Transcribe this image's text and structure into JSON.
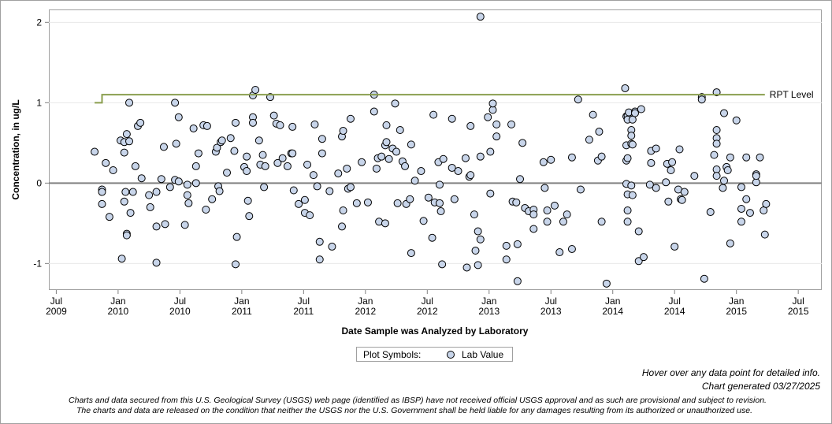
{
  "chart_data": {
    "type": "scatter",
    "y_label": "Concentration, in ug/L",
    "x_label": "Date Sample was Analyzed by Laboratory",
    "xlim": [
      2009.44,
      2015.69
    ],
    "ylim": [
      -1.33,
      2.16
    ],
    "xticks": [
      {
        "value": 2009.5,
        "label": "Jul 2009"
      },
      {
        "value": 2010.0,
        "label": "Jan 2010"
      },
      {
        "value": 2010.5,
        "label": "Jul 2010"
      },
      {
        "value": 2011.0,
        "label": "Jan 2011"
      },
      {
        "value": 2011.5,
        "label": "Jul 2011"
      },
      {
        "value": 2012.0,
        "label": "Jan 2012"
      },
      {
        "value": 2012.5,
        "label": "Jul 2012"
      },
      {
        "value": 2013.0,
        "label": "Jan 2013"
      },
      {
        "value": 2013.5,
        "label": "Jul 2013"
      },
      {
        "value": 2014.0,
        "label": "Jan 2014"
      },
      {
        "value": 2014.5,
        "label": "Jul 2014"
      },
      {
        "value": 2015.0,
        "label": "Jan 2015"
      },
      {
        "value": 2015.5,
        "label": "Jul 2015"
      }
    ],
    "yticks": [
      -1,
      0,
      1,
      2
    ],
    "grid": true,
    "reference_line": {
      "value": 0,
      "color": "#808080"
    },
    "legend": {
      "title": "Plot Symbols:",
      "position": "bottom"
    },
    "series": [
      {
        "name": "Lab Value",
        "color": "#c8d5ea",
        "x": [
          2009.81,
          2009.87,
          2009.87,
          2009.87,
          2009.9,
          2009.93,
          2009.96,
          2010.02,
          2010.03,
          2010.05,
          2010.05,
          2010.05,
          2010.06,
          2010.07,
          2010.07,
          2010.07,
          2010.09,
          2010.09,
          2010.1,
          2010.12,
          2010.14,
          2010.16,
          2010.18,
          2010.19,
          2010.25,
          2010.26,
          2010.31,
          2010.31,
          2010.31,
          2010.35,
          2010.37,
          2010.38,
          2010.42,
          2010.46,
          2010.46,
          2010.47,
          2010.49,
          2010.49,
          2010.54,
          2010.56,
          2010.56,
          2010.57,
          2010.61,
          2010.63,
          2010.63,
          2010.65,
          2010.69,
          2010.71,
          2010.72,
          2010.76,
          2010.79,
          2010.8,
          2010.81,
          2010.82,
          2010.83,
          2010.84,
          2010.88,
          2010.91,
          2010.94,
          2010.95,
          2010.95,
          2010.96,
          2011.02,
          2011.04,
          2011.04,
          2011.05,
          2011.06,
          2011.09,
          2011.09,
          2011.09,
          2011.11,
          2011.14,
          2011.15,
          2011.17,
          2011.18,
          2011.19,
          2011.23,
          2011.26,
          2011.29,
          2011.28,
          2011.31,
          2011.33,
          2011.37,
          2011.4,
          2011.41,
          2011.41,
          2011.42,
          2011.46,
          2011.51,
          2011.51,
          2011.53,
          2011.55,
          2011.58,
          2011.59,
          2011.61,
          2011.63,
          2011.63,
          2011.65,
          2011.65,
          2011.71,
          2011.73,
          2011.78,
          2011.81,
          2011.81,
          2011.82,
          2011.82,
          2011.85,
          2011.86,
          2011.88,
          2011.88,
          2011.93,
          2011.97,
          2012.02,
          2012.07,
          2012.07,
          2012.09,
          2012.1,
          2012.11,
          2012.13,
          2012.16,
          2012.16,
          2012.17,
          2012.17,
          2012.19,
          2012.22,
          2012.24,
          2012.25,
          2012.26,
          2012.28,
          2012.3,
          2012.32,
          2012.33,
          2012.36,
          2012.37,
          2012.37,
          2012.4,
          2012.45,
          2012.47,
          2012.51,
          2012.54,
          2012.55,
          2012.56,
          2012.59,
          2012.6,
          2012.6,
          2012.61,
          2012.62,
          2012.63,
          2012.7,
          2012.7,
          2012.72,
          2012.75,
          2012.81,
          2012.82,
          2012.84,
          2012.85,
          2012.85,
          2012.88,
          2012.89,
          2012.91,
          2012.91,
          2012.93,
          2012.93,
          2012.93,
          2012.99,
          2013.01,
          2013.01,
          2013.03,
          2013.03,
          2013.06,
          2013.06,
          2013.14,
          2013.14,
          2013.18,
          2013.19,
          2013.22,
          2013.23,
          2013.23,
          2013.25,
          2013.27,
          2013.29,
          2013.32,
          2013.36,
          2013.36,
          2013.36,
          2013.44,
          2013.45,
          2013.47,
          2013.47,
          2013.5,
          2013.53,
          2013.57,
          2013.6,
          2013.63,
          2013.67,
          2013.67,
          2013.72,
          2013.74,
          2013.81,
          2013.84,
          2013.88,
          2013.89,
          2013.91,
          2013.91,
          2013.95,
          2014.1,
          2014.11,
          2014.11,
          2014.11,
          2014.11,
          2014.12,
          2014.12,
          2014.12,
          2014.12,
          2014.12,
          2014.12,
          2014.13,
          2014.15,
          2014.15,
          2014.15,
          2014.15,
          2014.16,
          2014.16,
          2014.16,
          2014.18,
          2014.18,
          2014.21,
          2014.21,
          2014.23,
          2014.25,
          2014.3,
          2014.31,
          2014.31,
          2014.35,
          2014.35,
          2014.43,
          2014.44,
          2014.45,
          2014.47,
          2014.48,
          2014.5,
          2014.53,
          2014.54,
          2014.55,
          2014.56,
          2014.58,
          2014.66,
          2014.72,
          2014.72,
          2014.74,
          2014.79,
          2014.82,
          2014.84,
          2014.84,
          2014.84,
          2014.84,
          2014.84,
          2014.84,
          2014.89,
          2014.9,
          2014.9,
          2014.92,
          2014.93,
          2014.95,
          2014.95,
          2015.0,
          2015.04,
          2015.04,
          2015.04,
          2015.08,
          2015.08,
          2015.11,
          2015.16,
          2015.16,
          2015.16,
          2015.19,
          2015.22,
          2015.23,
          2015.24
        ],
        "values": [
          0.39,
          -0.08,
          -0.11,
          -0.26,
          0.25,
          -0.42,
          0.16,
          0.53,
          -0.94,
          0.51,
          0.38,
          -0.23,
          -0.11,
          0.61,
          -0.63,
          -0.65,
          0.52,
          1.0,
          -0.37,
          -0.11,
          0.21,
          0.71,
          0.75,
          0.06,
          -0.15,
          -0.3,
          -0.99,
          -0.11,
          -0.54,
          0.05,
          0.45,
          -0.51,
          -0.05,
          1.0,
          0.04,
          0.49,
          0.02,
          0.82,
          -0.52,
          -0.15,
          -0.02,
          -0.25,
          0.68,
          0.21,
          0.0,
          0.37,
          0.72,
          -0.33,
          0.71,
          -0.2,
          0.39,
          0.44,
          -0.04,
          -0.1,
          0.51,
          0.53,
          0.13,
          0.56,
          0.4,
          0.75,
          -1.01,
          -0.67,
          0.2,
          0.15,
          0.33,
          -0.22,
          -0.41,
          0.82,
          0.75,
          1.09,
          1.16,
          0.53,
          0.23,
          0.35,
          -0.05,
          0.21,
          1.07,
          0.84,
          0.25,
          0.74,
          0.72,
          0.31,
          0.21,
          0.37,
          0.37,
          0.7,
          -0.09,
          -0.26,
          -0.37,
          -0.21,
          0.23,
          -0.4,
          0.1,
          0.73,
          -0.04,
          -0.73,
          -0.95,
          0.55,
          0.37,
          -0.1,
          -0.79,
          0.12,
          0.58,
          -0.54,
          -0.34,
          0.65,
          0.18,
          -0.07,
          0.8,
          -0.05,
          -0.25,
          0.26,
          -0.24,
          1.1,
          0.89,
          0.18,
          0.31,
          -0.48,
          0.33,
          -0.5,
          0.47,
          0.51,
          0.72,
          0.3,
          0.43,
          0.99,
          0.39,
          -0.25,
          0.66,
          0.27,
          0.21,
          -0.26,
          -0.2,
          0.48,
          -0.87,
          0.03,
          0.15,
          -0.47,
          -0.18,
          -0.68,
          0.85,
          -0.24,
          0.26,
          -0.25,
          -0.02,
          -0.35,
          -1.01,
          0.3,
          0.19,
          0.8,
          -0.2,
          0.15,
          0.31,
          -1.05,
          0.08,
          0.1,
          0.71,
          -0.39,
          -0.84,
          -0.6,
          -1.02,
          2.07,
          0.33,
          -0.7,
          0.82,
          0.39,
          -0.13,
          0.91,
          0.99,
          0.58,
          0.73,
          -0.78,
          -0.95,
          0.73,
          -0.23,
          -0.24,
          -0.76,
          -1.22,
          0.05,
          0.5,
          -0.31,
          -0.35,
          -0.33,
          -0.39,
          -0.57,
          0.26,
          -0.06,
          -0.34,
          -0.48,
          0.29,
          -0.28,
          -0.86,
          -0.48,
          -0.39,
          -0.82,
          0.32,
          1.04,
          -0.08,
          0.54,
          0.85,
          0.28,
          0.64,
          0.33,
          -0.48,
          -1.25,
          1.18,
          0.83,
          0.47,
          0.28,
          -0.01,
          -0.34,
          -0.48,
          0.84,
          0.31,
          -0.14,
          0.79,
          0.88,
          0.49,
          0.66,
          0.59,
          -0.03,
          -0.15,
          0.79,
          0.48,
          0.89,
          0.87,
          -0.6,
          -0.97,
          0.92,
          -0.92,
          -0.02,
          0.4,
          0.25,
          -0.06,
          0.43,
          0.01,
          0.24,
          -0.23,
          0.16,
          0.26,
          -0.79,
          -0.08,
          0.42,
          -0.2,
          -0.21,
          -0.11,
          0.09,
          1.07,
          1.04,
          -1.19,
          -0.36,
          0.35,
          0.56,
          0.49,
          0.17,
          0.09,
          0.66,
          1.13,
          -0.06,
          0.03,
          0.87,
          0.2,
          0.16,
          0.32,
          -0.75,
          0.78,
          -0.05,
          -0.32,
          -0.48,
          -0.2,
          0.32,
          -0.37,
          0.11,
          0.01,
          0.09,
          0.32,
          -0.34,
          -0.64,
          -0.26
        ]
      },
      {
        "name": "RPT Level",
        "type": "line",
        "color": "#8a9e4e",
        "x": [
          2009.81,
          2009.87,
          2009.87,
          2015.23
        ],
        "values": [
          1.0,
          1.0,
          1.1,
          1.1
        ]
      }
    ],
    "notes": [
      "Hover over any data point for detailed info.",
      "Chart generated 03/27/2025"
    ],
    "disclaimer": [
      "Charts and data secured from this U.S. Geological Survey (USGS) web page (identified as IBSP) have not received official USGS approval and as such are provisional and subject to revision.",
      "The charts and data are released on the condition that neither the USGS nor the U.S. Government shall be held liable for any damages resulting from its authorized or unauthorized use."
    ]
  }
}
